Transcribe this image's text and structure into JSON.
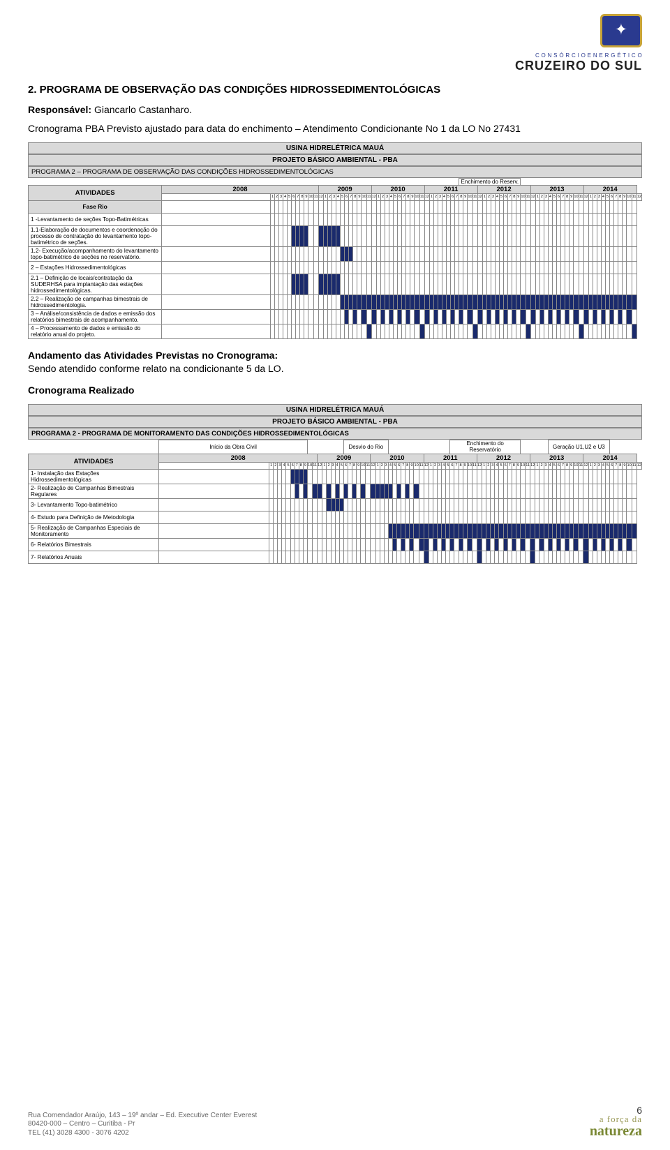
{
  "brand": {
    "consorcio": "C O N S Ó R C I O   E N E R G É T I C O",
    "name": "CRUZEIRO DO SUL"
  },
  "section_title": "2. PROGRAMA DE OBSERVAÇÃO DAS CONDIÇÕES HIDROSSEDIMENTOLÓGICAS",
  "resp_label": "Responsável:",
  "resp_name": "Giancarlo Castanharo.",
  "crono_top": "Cronograma PBA Previsto ajustado para data do enchimento – Atendimento Condicionante No 1 da LO No 27431",
  "usina": "USINA HIDRELÉTRICA MAUÁ",
  "projeto": "PROJETO BÁSICO AMBIENTAL - PBA",
  "prog2a": "PROGRAMA 2 – PROGRAMA DE OBSERVAÇÃO DAS CONDIÇÕES HIDROSSEDIMENTOLÓGICAS",
  "enchimento_label": "Enchimento do Reserv.",
  "atividades_label": "ATIVIDADES",
  "years": [
    "2008",
    "2009",
    "2010",
    "2011",
    "2012",
    "2013",
    "2014"
  ],
  "months": [
    "1",
    "2",
    "3",
    "4",
    "5",
    "6",
    "7",
    "8",
    "9",
    "10",
    "11",
    "12"
  ],
  "fase_rio": "Fase Rio",
  "gantt1": [
    {
      "label": "1 -Levantamento de seções Topo-Batimétricas",
      "fill": []
    },
    {
      "label": "1.1-Elaboração de documentos e coordenação do processo de contratação do levantamento topo-batimétrico de seções.",
      "fill": [
        [
          0,
          6,
          10
        ],
        [
          1,
          0,
          5
        ]
      ]
    },
    {
      "label": "1.2- Execução/acompanhamento do levantamento topo-batimétrico de seções no reservatório.",
      "fill": [
        [
          1,
          5,
          8
        ]
      ]
    },
    {
      "label": "2 – Estações Hidrossedimentológicas",
      "fill": []
    },
    {
      "label": "2.1 – Definição de locais/contratação da SUDERHSA para implantação das estações hidrossedimentológicas.",
      "fill": [
        [
          0,
          6,
          10
        ],
        [
          1,
          0,
          5
        ]
      ]
    },
    {
      "label": "2.2 – Realização de campanhas bimestrais de hidrossedimentologia.",
      "fill": [
        [
          1,
          5,
          12
        ],
        [
          2,
          0,
          12
        ],
        [
          3,
          0,
          12
        ],
        [
          4,
          0,
          12
        ],
        [
          5,
          0,
          12
        ],
        [
          6,
          0,
          12
        ]
      ]
    },
    {
      "label": "3 – Análise/consistência de dados e emissão dos relatórios bimestrais de acompanhamento.",
      "fill_bimonthly": [
        [
          1,
          6
        ],
        [
          2,
          0
        ],
        [
          3,
          0
        ],
        [
          4,
          0
        ],
        [
          5,
          0
        ],
        [
          6,
          0
        ]
      ]
    },
    {
      "label": "4 – Processamento de dados e emissão do relatório anual do projeto.",
      "fill_cols": [
        [
          1,
          11
        ],
        [
          2,
          11
        ],
        [
          3,
          11
        ],
        [
          4,
          11
        ],
        [
          5,
          11
        ],
        [
          6,
          11
        ]
      ]
    }
  ],
  "andamento_title": "Andamento das Atividades Previstas no Cronograma:",
  "andamento_text": "Sendo atendido conforme relato na condicionante 5 da LO.",
  "crono_realizado": "Cronograma Realizado",
  "prog2b": "PROGRAMA 2 - PROGRAMA DE MONITORAMENTO DAS CONDIÇÕES HIDROSSEDIMENTOLÓGICAS",
  "callouts": {
    "inicio": "Início da Obra Civil",
    "desvio": "Desvio do Rio",
    "ench": "Enchimento do Reservatório",
    "geracao": "Geração U1,U2 e U3"
  },
  "gantt2": [
    {
      "label": "1- Instalação das Estações Hidrossedimentológicas",
      "fill": [
        [
          0,
          6,
          10
        ]
      ]
    },
    {
      "label": "2- Realização de Campanhas Bimestrais Regulares",
      "fill_bimonthly": [
        [
          0,
          7
        ],
        [
          1,
          0
        ],
        [
          2,
          0
        ]
      ],
      "fill_end": [
        [
          2,
          0,
          4
        ]
      ]
    },
    {
      "label": "3- Levantamento Topo-batimétrico",
      "fill": [
        [
          1,
          2,
          6
        ]
      ]
    },
    {
      "label": "4- Estudo para Definição de Metodologia",
      "fill": []
    },
    {
      "label": "5- Realização de Campanhas Especiais de Monitoramento",
      "fill": [
        [
          2,
          4,
          12
        ],
        [
          3,
          0,
          12
        ],
        [
          4,
          0,
          12
        ],
        [
          5,
          0,
          12
        ],
        [
          6,
          0,
          12
        ]
      ]
    },
    {
      "label": "6- Relatórios Bimestrais",
      "fill_bimonthly": [
        [
          2,
          5
        ],
        [
          3,
          0
        ],
        [
          4,
          0
        ],
        [
          5,
          0
        ],
        [
          6,
          0
        ]
      ]
    },
    {
      "label": "7- Relatórios Anuais",
      "fill_cols": [
        [
          3,
          0
        ],
        [
          4,
          0
        ],
        [
          5,
          0
        ],
        [
          6,
          0
        ]
      ]
    }
  ],
  "footer": {
    "line1": "Rua Comendador Araújo, 143 – 19º andar – Ed. Executive Center Everest",
    "line2": "80420-000 – Centro – Curitiba - Pr",
    "line3": "TEL (41) 3028 4300 - 3076 4202",
    "page": "6",
    "forca1": "a força da",
    "forca2": "natureza"
  },
  "colors": {
    "fill": "#1a2a6c",
    "head": "#d9d9d9",
    "grid": "#888888"
  }
}
